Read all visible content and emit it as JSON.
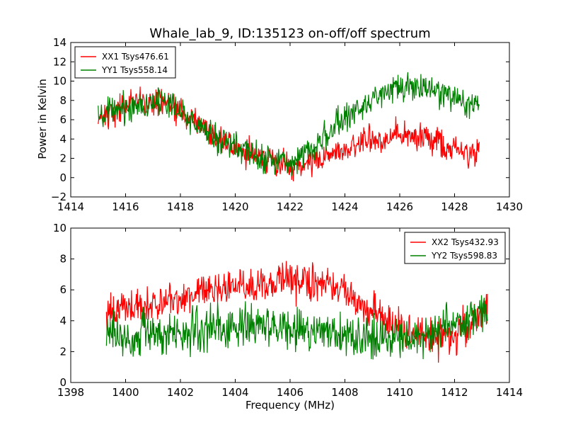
{
  "figure": {
    "title": "Whale_lab_9, ID:135123 on-off/off spectrum",
    "ylabel": "Power in Kelvin",
    "xlabel": "Frequency (MHz)"
  },
  "chart_data": [
    {
      "type": "line",
      "title": "Whale_lab_9, ID:135123 on-off/off spectrum",
      "xlabel": "",
      "ylabel": "Power in Kelvin",
      "xlim": [
        1414,
        1430
      ],
      "ylim": [
        -2,
        14
      ],
      "xticks": [
        1414,
        1416,
        1418,
        1420,
        1422,
        1424,
        1426,
        1428,
        1430
      ],
      "yticks": [
        -2,
        0,
        2,
        4,
        6,
        8,
        10,
        12,
        14
      ],
      "grid": false,
      "legend_position": "top-left",
      "x_range_data": [
        1415.0,
        1428.9
      ],
      "series": [
        {
          "name": "XX1 Tsys476.61",
          "color": "#ff0000",
          "x": [
            1415.0,
            1415.5,
            1416.0,
            1416.5,
            1417.0,
            1417.5,
            1418.0,
            1418.5,
            1419.0,
            1419.5,
            1420.0,
            1420.5,
            1421.0,
            1421.5,
            1422.0,
            1422.5,
            1423.0,
            1423.5,
            1424.0,
            1424.5,
            1425.0,
            1425.5,
            1426.0,
            1426.5,
            1427.0,
            1427.5,
            1428.0,
            1428.5,
            1428.9
          ],
          "values": [
            6.2,
            6.9,
            7.5,
            7.9,
            8.0,
            7.6,
            6.8,
            5.9,
            4.9,
            3.9,
            3.1,
            2.5,
            2.0,
            1.5,
            1.2,
            1.2,
            1.8,
            2.4,
            3.0,
            3.5,
            3.9,
            4.2,
            4.4,
            4.4,
            4.1,
            3.5,
            2.9,
            2.4,
            2.3
          ],
          "noise_amplitude": 0.7
        },
        {
          "name": "YY1 Tsys558.14",
          "color": "#008000",
          "x": [
            1415.0,
            1415.5,
            1416.0,
            1416.5,
            1417.0,
            1417.5,
            1418.0,
            1418.5,
            1419.0,
            1419.5,
            1420.0,
            1420.5,
            1421.0,
            1421.5,
            1422.0,
            1422.5,
            1423.0,
            1423.5,
            1424.0,
            1424.5,
            1425.0,
            1425.5,
            1426.0,
            1426.5,
            1427.0,
            1427.5,
            1428.0,
            1428.5,
            1428.9
          ],
          "values": [
            6.0,
            6.8,
            7.2,
            7.6,
            7.8,
            7.6,
            6.9,
            5.8,
            4.8,
            3.9,
            3.1,
            2.5,
            2.1,
            1.8,
            1.8,
            2.4,
            3.6,
            4.9,
            6.1,
            7.2,
            8.2,
            8.8,
            9.2,
            9.3,
            9.0,
            8.6,
            8.2,
            7.8,
            7.5
          ],
          "noise_amplitude": 0.75
        }
      ]
    },
    {
      "type": "line",
      "title": "",
      "xlabel": "Frequency (MHz)",
      "ylabel": "",
      "xlim": [
        1398,
        1414
      ],
      "ylim": [
        0,
        10
      ],
      "xticks": [
        1398,
        1400,
        1402,
        1404,
        1406,
        1408,
        1410,
        1412,
        1414
      ],
      "yticks": [
        0,
        2,
        4,
        6,
        8,
        10
      ],
      "grid": false,
      "legend_position": "top-right",
      "x_range_data": [
        1399.3,
        1413.2
      ],
      "series": [
        {
          "name": "XX2 Tsys432.93",
          "color": "#ff0000",
          "x": [
            1399.3,
            1400.0,
            1401.0,
            1402.0,
            1403.0,
            1404.0,
            1405.0,
            1406.0,
            1407.0,
            1407.5,
            1408.0,
            1408.5,
            1409.0,
            1409.5,
            1410.0,
            1410.5,
            1411.0,
            1411.5,
            1412.0,
            1412.5,
            1413.2
          ],
          "values": [
            4.6,
            4.8,
            5.0,
            5.3,
            5.8,
            6.2,
            6.4,
            6.6,
            6.5,
            6.2,
            5.8,
            5.2,
            4.6,
            4.0,
            3.5,
            3.1,
            2.9,
            2.8,
            3.0,
            3.6,
            5.0
          ],
          "noise_amplitude": 0.6
        },
        {
          "name": "YY2 Tsys598.83",
          "color": "#008000",
          "x": [
            1399.3,
            1400.0,
            1401.0,
            1402.0,
            1403.0,
            1404.0,
            1405.0,
            1406.0,
            1407.0,
            1408.0,
            1409.0,
            1410.0,
            1410.5,
            1411.0,
            1411.5,
            1412.0,
            1412.5,
            1413.2
          ],
          "values": [
            3.2,
            3.0,
            3.1,
            3.2,
            3.4,
            3.6,
            3.6,
            3.5,
            3.3,
            3.1,
            2.9,
            2.8,
            2.9,
            3.0,
            3.3,
            3.7,
            4.1,
            4.6
          ],
          "noise_amplitude": 0.7
        }
      ]
    }
  ]
}
